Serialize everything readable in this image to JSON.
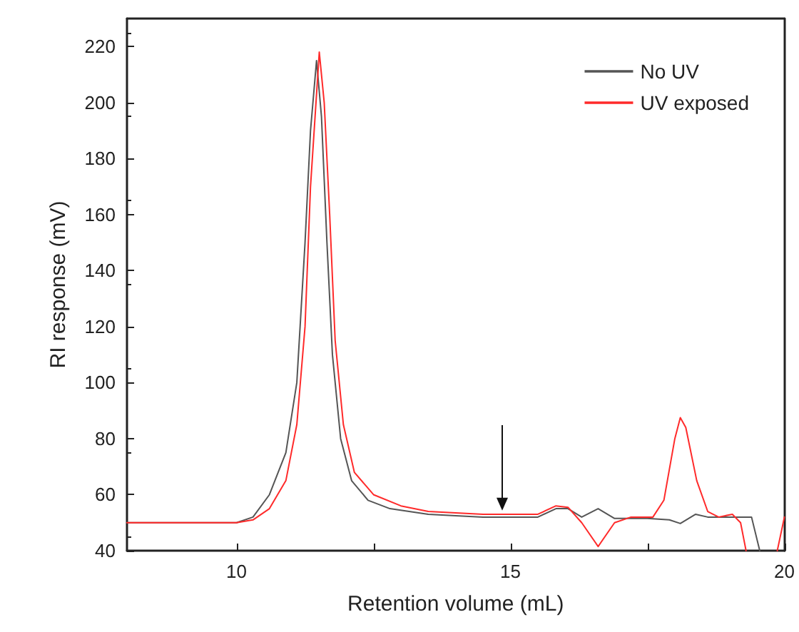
{
  "chart_data": {
    "type": "line",
    "xlabel": "Retention volume (mL)",
    "ylabel": "RI response (mV)",
    "xlim": [
      8,
      20
    ],
    "ylim": [
      40,
      230
    ],
    "xticks": [
      10,
      {
        "value": 12.5,
        "label": null
      },
      15,
      {
        "value": 17.5,
        "label": null
      },
      20
    ],
    "yticks": [
      40,
      60,
      80,
      100,
      120,
      140,
      160,
      180,
      200,
      220
    ],
    "grid": false,
    "legend": "top right",
    "marker": "none",
    "line_style": "solid",
    "series": [
      {
        "name": "No UV",
        "color": "#555555",
        "x": [
          8,
          10,
          10.3,
          10.6,
          10.9,
          11.1,
          11.25,
          11.35,
          11.46,
          11.55,
          11.65,
          11.75,
          11.9,
          12.1,
          12.4,
          12.8,
          13.5,
          14.5,
          15.5,
          15.83,
          16.05,
          16.3,
          16.6,
          16.9,
          17.5,
          17.9,
          18.1,
          18.38,
          18.6,
          18.9,
          19.2,
          19.4,
          19.55
        ],
        "values": [
          50,
          50,
          52,
          60,
          75,
          100,
          150,
          190,
          215,
          195,
          150,
          110,
          80,
          65,
          58,
          55,
          53,
          52,
          52,
          55,
          55,
          52,
          55,
          51.5,
          51.5,
          51,
          49.7,
          53,
          52,
          52,
          52,
          52,
          40
        ]
      },
      {
        "name": "UV exposed",
        "color": "#ff2a2a",
        "x": [
          8,
          10,
          10.3,
          10.6,
          10.9,
          11.1,
          11.25,
          11.35,
          11.51,
          11.6,
          11.7,
          11.8,
          11.95,
          12.15,
          12.5,
          13,
          13.5,
          14.5,
          15.5,
          15.83,
          16.05,
          16.3,
          16.6,
          16.9,
          17.2,
          17.6,
          17.8,
          18,
          18.1,
          18.2,
          18.4,
          18.6,
          18.8,
          19.05,
          19.2,
          19.3,
          19.6,
          19.87,
          20
        ],
        "values": [
          50,
          50,
          51,
          55,
          65,
          85,
          120,
          170,
          218,
          200,
          160,
          115,
          85,
          68,
          60,
          56,
          54,
          53,
          53,
          56,
          55.5,
          50,
          41.5,
          50,
          52,
          52,
          58,
          80,
          87.5,
          84,
          65,
          54,
          52,
          53,
          50,
          40,
          null,
          40,
          52
        ]
      }
    ]
  }
}
